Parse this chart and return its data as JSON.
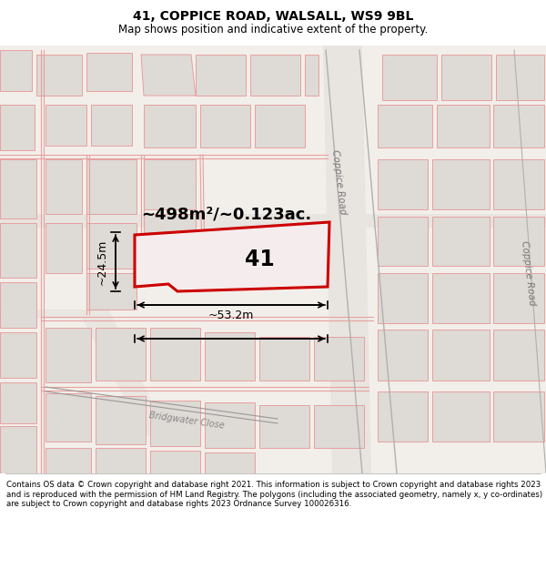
{
  "title": "41, COPPICE ROAD, WALSALL, WS9 9BL",
  "subtitle": "Map shows position and indicative extent of the property.",
  "footer": "Contains OS data © Crown copyright and database right 2021. This information is subject to Crown copyright and database rights 2023 and is reproduced with the permission of HM Land Registry. The polygons (including the associated geometry, namely x, y co-ordinates) are subject to Crown copyright and database rights 2023 Ordnance Survey 100026316.",
  "area_label": "~498m²/~0.123ac.",
  "width_label": "~53.2m",
  "height_label": "~24.5m",
  "number_label": "41",
  "map_bg": "#f2efea",
  "building_fill": "#dedad5",
  "pink_line": "#e8a0a0",
  "plot_outline_color": "#cc0000",
  "plot_fill": "#f5eded",
  "road_gray": "#888888",
  "fig_width": 6.0,
  "fig_height": 6.25,
  "title_size": 10,
  "subtitle_size": 8.5
}
